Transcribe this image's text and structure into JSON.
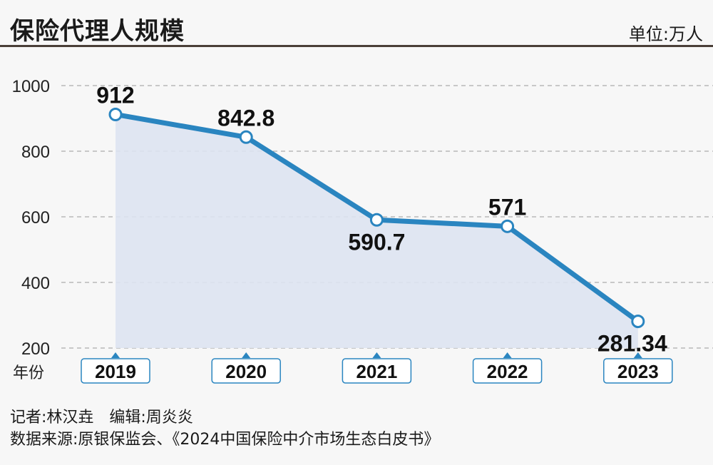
{
  "header": {
    "title": "保险代理人规模",
    "unit": "单位:万人"
  },
  "footer": {
    "credit": "记者:林汉垚　编辑:周炎炎",
    "source": "数据来源:原银保监会、《2024中国保险中介市场生态白皮书》"
  },
  "colors": {
    "line": "#2a85c0",
    "fill": "#dde3f1",
    "grid": "#9a9a9a",
    "tag_border": "#2a85c0"
  },
  "chart_data": {
    "type": "area",
    "title": "保险代理人规模",
    "xlabel": "年份",
    "ylabel": "",
    "unit": "万人",
    "categories": [
      "2019",
      "2020",
      "2021",
      "2022",
      "2023"
    ],
    "values": [
      912,
      842.8,
      590.7,
      571,
      281.34
    ],
    "labels": [
      "912",
      "842.8",
      "590.7",
      "571",
      "281.34"
    ],
    "label_positions": [
      "above",
      "above",
      "below",
      "above",
      "below"
    ],
    "ylim": [
      200,
      1000
    ],
    "yticks": [
      200,
      400,
      600,
      800,
      1000
    ],
    "grid": true,
    "grid_style": "dashed",
    "legend": "none"
  }
}
